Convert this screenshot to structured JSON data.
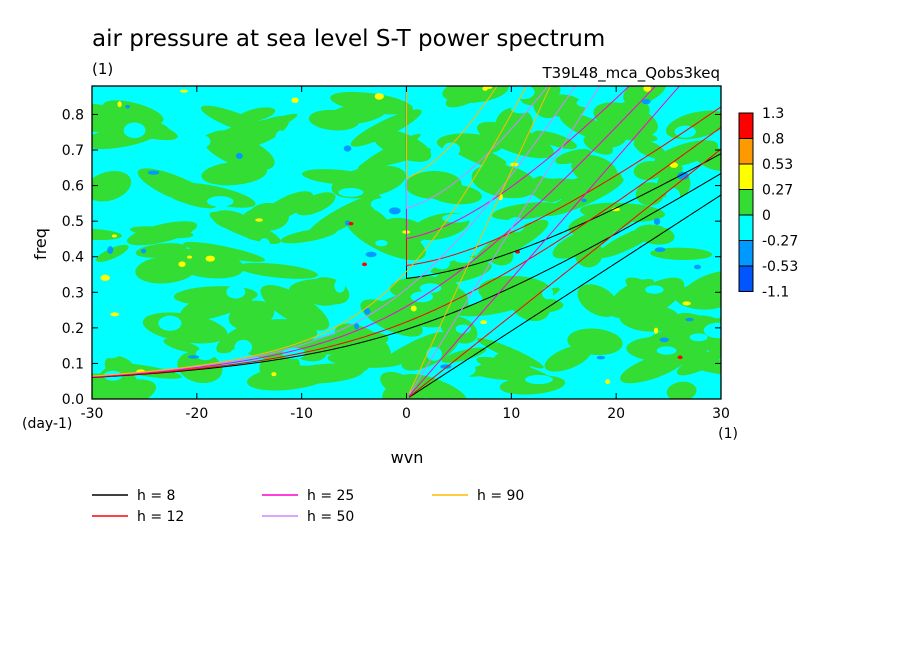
{
  "chart_data": {
    "type": "heatmap",
    "title": "air pressure at sea level S-T power spectrum",
    "subtitle": "(1)",
    "run_label": "T39L48_mca_Qobs3keq",
    "xlabel": "wvn",
    "ylabel": "freq",
    "x_unit": "(1)",
    "y_unit": "(day-1)",
    "xlim": [
      -30,
      30
    ],
    "ylim": [
      0,
      0.88
    ],
    "x_ticks": [
      "-30",
      "-20",
      "-10",
      "0",
      "10",
      "20",
      "30"
    ],
    "y_ticks": [
      "0.0",
      "0.1",
      "0.2",
      "0.3",
      "0.4",
      "0.5",
      "0.6",
      "0.7",
      "0.8"
    ],
    "color_levels": [
      {
        "label": "1.3",
        "color": "#ff0000"
      },
      {
        "label": "0.8",
        "color": "#ff9900"
      },
      {
        "label": "0.53",
        "color": "#ffff00"
      },
      {
        "label": "0.27",
        "color": "#33dd33"
      },
      {
        "label": "0",
        "color": "#00ffff"
      },
      {
        "label": "-0.27",
        "color": "#0099ff"
      },
      {
        "label": "-0.53",
        "color": "#0055ff"
      },
      {
        "label": "-1.1",
        "color": ""
      }
    ],
    "background_colors": {
      "cyan": "#00ffff",
      "green": "#33dd33",
      "blue": "#0099ff",
      "yellow": "#ffff00",
      "red": "#ff0000"
    },
    "series": [
      {
        "name": "h =  8",
        "h": 8,
        "color": "#000000"
      },
      {
        "name": "h = 12",
        "h": 12,
        "color": "#ff0000"
      },
      {
        "name": "h = 25",
        "h": 25,
        "color": "#ff00cc"
      },
      {
        "name": "h = 50",
        "h": 50,
        "color": "#cc88ff"
      },
      {
        "name": "h = 90",
        "h": 90,
        "color": "#ffbb00"
      }
    ],
    "grid": false,
    "legend_position": "bottom"
  }
}
